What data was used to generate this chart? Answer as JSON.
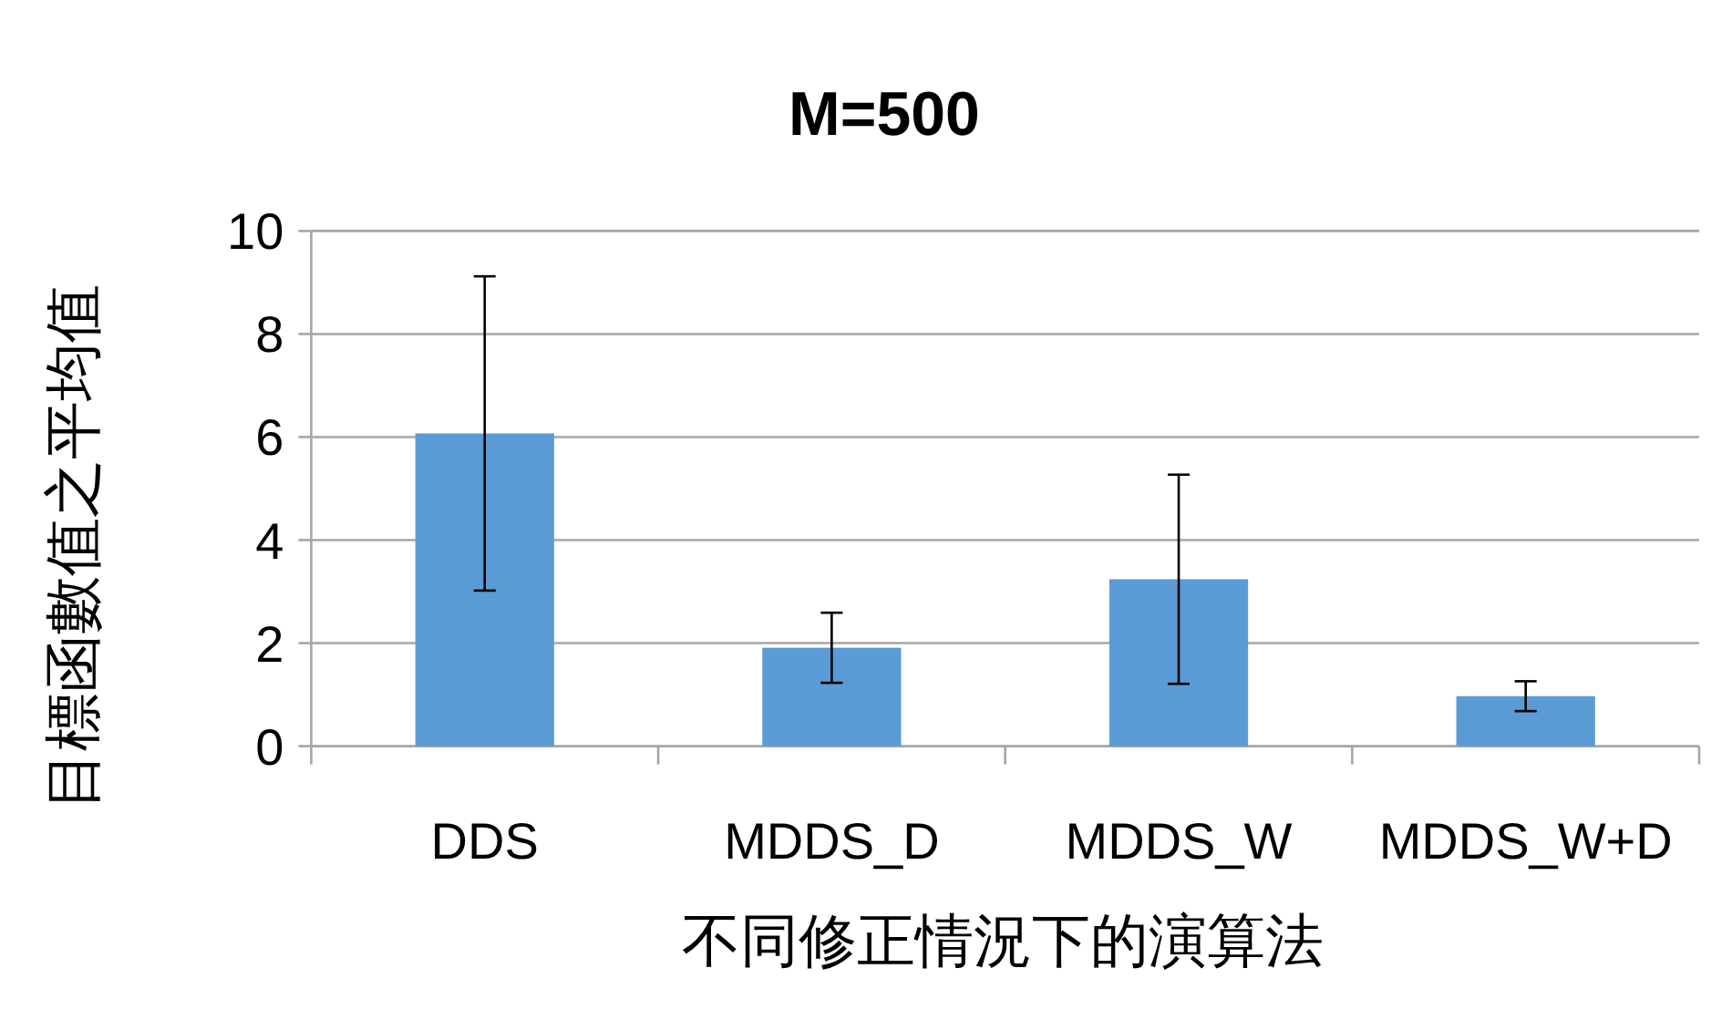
{
  "chart_data": {
    "type": "bar",
    "title": "M=500",
    "xlabel": "不同修正情況下的演算法",
    "ylabel": "目標函數值之平均值",
    "categories": [
      "DDS",
      "MDDS_D",
      "MDDS_W",
      "MDDS_W+D"
    ],
    "values": [
      6.07,
      1.91,
      3.24,
      0.97
    ],
    "errors": [
      3.05,
      0.68,
      2.03,
      0.29
    ],
    "color": "#5b9bd5",
    "ylim": [
      0,
      10
    ],
    "yticks": [
      0,
      2,
      4,
      6,
      8,
      10
    ],
    "grid": "y"
  }
}
